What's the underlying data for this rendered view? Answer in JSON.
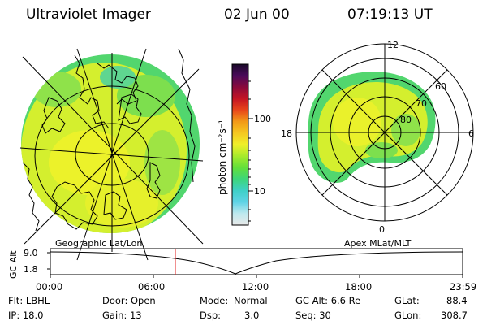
{
  "header": {
    "title": "Ultraviolet Imager",
    "date": "02 Jun 00",
    "time": "07:19:13 UT"
  },
  "colorbar": {
    "label": "photon cm⁻²s⁻¹",
    "ticks": [
      "100",
      "10"
    ],
    "gradient": [
      "#e9e9e9",
      "#bfe9ee",
      "#5fd3e6",
      "#3fd0c8",
      "#3dd67a",
      "#62df3a",
      "#a7ea2c",
      "#f0f02a",
      "#f5c820",
      "#f29a18",
      "#e8471a",
      "#c41424",
      "#8a0a3b",
      "#4a0a5a",
      "#1a0a2a"
    ]
  },
  "geo_map": {
    "caption": "Geographic Lat/Lon",
    "fill_color": "#d4ef2e",
    "edge_color": "#52d66e"
  },
  "polar_plot": {
    "caption": "Apex MLat/MLT",
    "mlt_labels": {
      "top": "12",
      "left": "18",
      "right": "6",
      "bottom": "0"
    },
    "lat_labels": [
      "60",
      "70",
      "80"
    ]
  },
  "altitude_plot": {
    "ylabel": "GC Alt",
    "yticks": [
      "9.0",
      "1.8"
    ],
    "xticks": [
      "00:00",
      "06:00",
      "12:00",
      "18:00",
      "23:59"
    ],
    "marker_color": "#e02020"
  },
  "info": {
    "filter": "Flt: LBHL",
    "ip": "IP: 18.0",
    "door": "Door: Open",
    "gain": "Gain: 13",
    "mode_label": "Mode:",
    "mode_value": "Normal",
    "dsp_label": "Dsp:",
    "dsp_value": "3.0",
    "gc_alt": "GC Alt: 6.6 Re",
    "seq": "Seq: 30",
    "glat_label": "GLat:",
    "glat_value": "88.4",
    "glon_label": "GLon:",
    "glon_value": "308.7"
  }
}
